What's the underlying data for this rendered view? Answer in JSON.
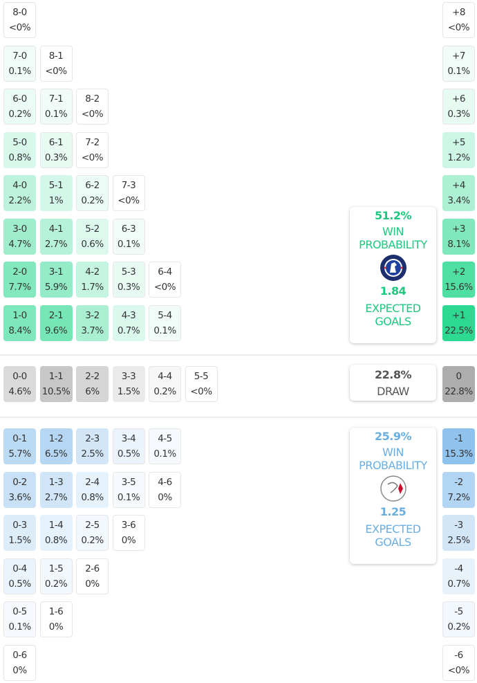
{
  "colors": {
    "home": "#1fd68a",
    "away": "#6fb0e8",
    "draw": "#a8a8a8"
  },
  "home_grid": [
    [
      [
        "8-0",
        "<0%",
        0
      ]
    ],
    [
      [
        "7-0",
        "0.1%",
        0.1
      ],
      [
        "8-1",
        "<0%",
        0
      ]
    ],
    [
      [
        "6-0",
        "0.2%",
        0.2
      ],
      [
        "7-1",
        "0.1%",
        0.1
      ],
      [
        "8-2",
        "<0%",
        0
      ]
    ],
    [
      [
        "5-0",
        "0.8%",
        0.8
      ],
      [
        "6-1",
        "0.3%",
        0.3
      ],
      [
        "7-2",
        "<0%",
        0
      ]
    ],
    [
      [
        "4-0",
        "2.2%",
        2.2
      ],
      [
        "5-1",
        "1%",
        1
      ],
      [
        "6-2",
        "0.2%",
        0.2
      ],
      [
        "7-3",
        "<0%",
        0
      ]
    ],
    [
      [
        "3-0",
        "4.7%",
        4.7
      ],
      [
        "4-1",
        "2.7%",
        2.7
      ],
      [
        "5-2",
        "0.6%",
        0.6
      ],
      [
        "6-3",
        "0.1%",
        0.1
      ]
    ],
    [
      [
        "2-0",
        "7.7%",
        7.7
      ],
      [
        "3-1",
        "5.9%",
        5.9
      ],
      [
        "4-2",
        "1.7%",
        1.7
      ],
      [
        "5-3",
        "0.3%",
        0.3
      ],
      [
        "6-4",
        "<0%",
        0
      ]
    ],
    [
      [
        "1-0",
        "8.4%",
        8.4
      ],
      [
        "2-1",
        "9.6%",
        9.6
      ],
      [
        "3-2",
        "3.7%",
        3.7
      ],
      [
        "4-3",
        "0.7%",
        0.7
      ],
      [
        "5-4",
        "0.1%",
        0.1
      ]
    ]
  ],
  "draw_row": [
    [
      "0-0",
      "4.6%",
      4.6
    ],
    [
      "1-1",
      "10.5%",
      10.5
    ],
    [
      "2-2",
      "6%",
      6
    ],
    [
      "3-3",
      "1.5%",
      1.5
    ],
    [
      "4-4",
      "0.2%",
      0.2
    ],
    [
      "5-5",
      "<0%",
      0
    ]
  ],
  "away_grid": [
    [
      [
        "0-1",
        "5.7%",
        5.7
      ],
      [
        "1-2",
        "6.5%",
        6.5
      ],
      [
        "2-3",
        "2.5%",
        2.5
      ],
      [
        "3-4",
        "0.5%",
        0.5
      ],
      [
        "4-5",
        "0.1%",
        0.1
      ]
    ],
    [
      [
        "0-2",
        "3.6%",
        3.6
      ],
      [
        "1-3",
        "2.7%",
        2.7
      ],
      [
        "2-4",
        "0.8%",
        0.8
      ],
      [
        "3-5",
        "0.1%",
        0.1
      ],
      [
        "4-6",
        "0%",
        0
      ]
    ],
    [
      [
        "0-3",
        "1.5%",
        1.5
      ],
      [
        "1-4",
        "0.8%",
        0.8
      ],
      [
        "2-5",
        "0.2%",
        0.2
      ],
      [
        "3-6",
        "0%",
        0
      ]
    ],
    [
      [
        "0-4",
        "0.5%",
        0.5
      ],
      [
        "1-5",
        "0.2%",
        0.2
      ],
      [
        "2-6",
        "0%",
        0
      ]
    ],
    [
      [
        "0-5",
        "0.1%",
        0.1
      ],
      [
        "1-6",
        "0%",
        0
      ]
    ],
    [
      [
        "0-6",
        "0%",
        0
      ]
    ]
  ],
  "home_margins": [
    [
      "+8",
      "<0%",
      0
    ],
    [
      "+7",
      "0.1%",
      0.1
    ],
    [
      "+6",
      "0.3%",
      0.3
    ],
    [
      "+5",
      "1.2%",
      1.2
    ],
    [
      "+4",
      "3.4%",
      3.4
    ],
    [
      "+3",
      "8.1%",
      8.1
    ],
    [
      "+2",
      "15.6%",
      15.6
    ],
    [
      "+1",
      "22.5%",
      22.5
    ]
  ],
  "draw_margin": [
    "0",
    "22.8%",
    22.8
  ],
  "away_margins": [
    [
      "-1",
      "15.3%",
      15.3
    ],
    [
      "-2",
      "7.2%",
      7.2
    ],
    [
      "-3",
      "2.5%",
      2.5
    ],
    [
      "-4",
      "0.7%",
      0.7
    ],
    [
      "-5",
      "0.2%",
      0.2
    ],
    [
      "-6",
      "<0%",
      0
    ]
  ],
  "home_summary": {
    "win_pct": "51.2%",
    "win_label": "WIN",
    "prob_label": "PROBABILITY",
    "xg": "1.84",
    "xg_label1": "EXPECTED",
    "xg_label2": "GOALS",
    "logo": "chelsea-crest",
    "color": "#1fc77e"
  },
  "draw_summary": {
    "pct": "22.8%",
    "label": "DRAW"
  },
  "away_summary": {
    "win_pct": "25.9%",
    "win_label": "WIN",
    "prob_label": "PROBABILITY",
    "xg": "1.25",
    "xg_label1": "EXPECTED",
    "xg_label2": "GOALS",
    "logo": "ajax-crest",
    "color": "#6aaee0"
  }
}
